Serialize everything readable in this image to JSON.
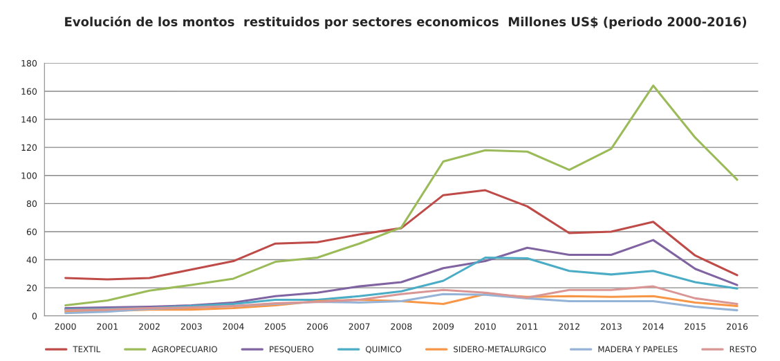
{
  "chart_data": {
    "type": "line",
    "title": "Evolución de los montos  restituidos por sectores economicos  Millones US$ (periodo 2000-2016)",
    "categories": [
      "2000",
      "2001",
      "2002",
      "2003",
      "2004",
      "2005",
      "2006",
      "2007",
      "2008",
      "2009",
      "2010",
      "2011",
      "2012",
      "2013",
      "2014",
      "2015",
      "2016"
    ],
    "ylim": [
      0,
      180
    ],
    "yticks": [
      0,
      20,
      40,
      60,
      80,
      100,
      120,
      140,
      160,
      180
    ],
    "grid": "y",
    "legend": "bottom",
    "marker": "none",
    "line_style": "solid",
    "series": [
      {
        "name": "TEXTIL",
        "color": "#be4b48",
        "values": [
          27,
          26,
          27,
          33,
          39,
          51.5,
          52.5,
          58,
          62.5,
          86,
          89.5,
          78,
          59,
          60,
          67,
          43,
          29
        ]
      },
      {
        "name": "AGROPECUARIO",
        "color": "#9bbb59",
        "values": [
          7.5,
          11,
          18,
          22,
          26.5,
          38.5,
          41.5,
          51.5,
          63,
          110,
          118,
          117,
          104,
          119,
          164,
          127,
          97
        ]
      },
      {
        "name": "PESQUERO",
        "color": "#8064a2",
        "values": [
          5.5,
          6,
          6.5,
          7.5,
          9.5,
          14,
          16.5,
          21,
          24,
          34,
          39,
          48.5,
          43.5,
          43.5,
          54,
          33.5,
          22
        ]
      },
      {
        "name": "QUIMICO",
        "color": "#4bacc6",
        "values": [
          4.5,
          5,
          5.5,
          7,
          8.5,
          11.5,
          11.5,
          14,
          17.5,
          25,
          41.5,
          41,
          32,
          29.5,
          32,
          24,
          19.5
        ]
      },
      {
        "name": "SIDERO-METALURGICO",
        "color": "#f79646",
        "values": [
          3,
          3.5,
          4.5,
          4.5,
          5.5,
          7.5,
          10.5,
          11.5,
          10.5,
          8.5,
          15.5,
          13.5,
          14,
          13.5,
          14,
          9.5,
          7
        ]
      },
      {
        "name": "MADERA Y PAPELES",
        "color": "#95b3d7",
        "values": [
          2,
          3,
          5,
          6,
          7,
          8.5,
          10,
          9.5,
          10.5,
          15.5,
          15,
          12.5,
          10.5,
          10.5,
          10.5,
          6.5,
          4
        ]
      },
      {
        "name": "RESTO",
        "color": "#d99694",
        "values": [
          4,
          4.5,
          5.5,
          6,
          7,
          9,
          10,
          11.5,
          15.5,
          18.5,
          16.5,
          13,
          18.5,
          18.5,
          21,
          12.5,
          8.5
        ]
      }
    ]
  }
}
